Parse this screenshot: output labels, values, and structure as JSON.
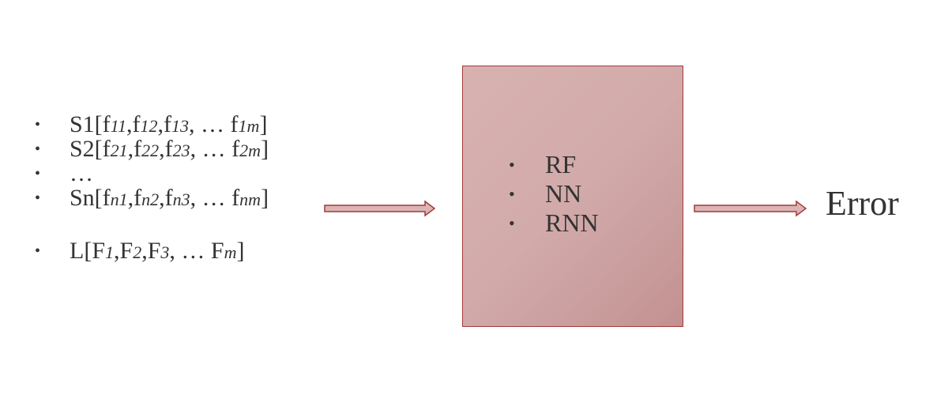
{
  "inputs": {
    "items": [
      {
        "bullet": "•",
        "parts": [
          {
            "t": "S1[f",
            "i": false
          },
          {
            "t": "11",
            "i": true
          },
          {
            "t": ",f",
            "i": false
          },
          {
            "t": "12",
            "i": true
          },
          {
            "t": ",f",
            "i": false
          },
          {
            "t": "13",
            "i": true
          },
          {
            "t": ", … f",
            "i": false
          },
          {
            "t": "1m",
            "i": true
          },
          {
            "t": "]",
            "i": false
          }
        ]
      },
      {
        "bullet": "•",
        "parts": [
          {
            "t": "S2[f",
            "i": false
          },
          {
            "t": "21",
            "i": true
          },
          {
            "t": ",f",
            "i": false
          },
          {
            "t": "22",
            "i": true
          },
          {
            "t": ",f",
            "i": false
          },
          {
            "t": "23",
            "i": true
          },
          {
            "t": ", … f",
            "i": false
          },
          {
            "t": "2m",
            "i": true
          },
          {
            "t": "]",
            "i": false
          }
        ]
      },
      {
        "bullet": "•",
        "parts": [
          {
            "t": "…",
            "i": false
          }
        ]
      },
      {
        "bullet": "•",
        "parts": [
          {
            "t": "Sn[f",
            "i": false
          },
          {
            "t": "n1",
            "i": true
          },
          {
            "t": ",f",
            "i": false
          },
          {
            "t": "n2",
            "i": true
          },
          {
            "t": ",f",
            "i": false
          },
          {
            "t": "n3",
            "i": true
          },
          {
            "t": ", … f",
            "i": false
          },
          {
            "t": "nm",
            "i": true
          },
          {
            "t": "]",
            "i": false
          }
        ]
      }
    ],
    "label_item": {
      "bullet": "•",
      "parts": [
        {
          "t": "L[F",
          "i": false
        },
        {
          "t": "1",
          "i": true
        },
        {
          "t": ",F",
          "i": false
        },
        {
          "t": "2",
          "i": true
        },
        {
          "t": ",F",
          "i": false
        },
        {
          "t": "3",
          "i": true
        },
        {
          "t": ", … F",
          "i": false
        },
        {
          "t": "m",
          "i": true
        },
        {
          "t": "]",
          "i": false
        }
      ]
    }
  },
  "models": {
    "items": [
      {
        "bullet": "•",
        "label": "RF"
      },
      {
        "bullet": "•",
        "label": "NN"
      },
      {
        "bullet": "•",
        "label": "RNN"
      }
    ]
  },
  "output": {
    "label": "Error"
  },
  "colors": {
    "box_fill": "#d2aaaa",
    "box_border": "#a53a3a",
    "arrow_fill": "#dcb4b4",
    "arrow_stroke": "#a53a3a",
    "text": "#333333"
  }
}
